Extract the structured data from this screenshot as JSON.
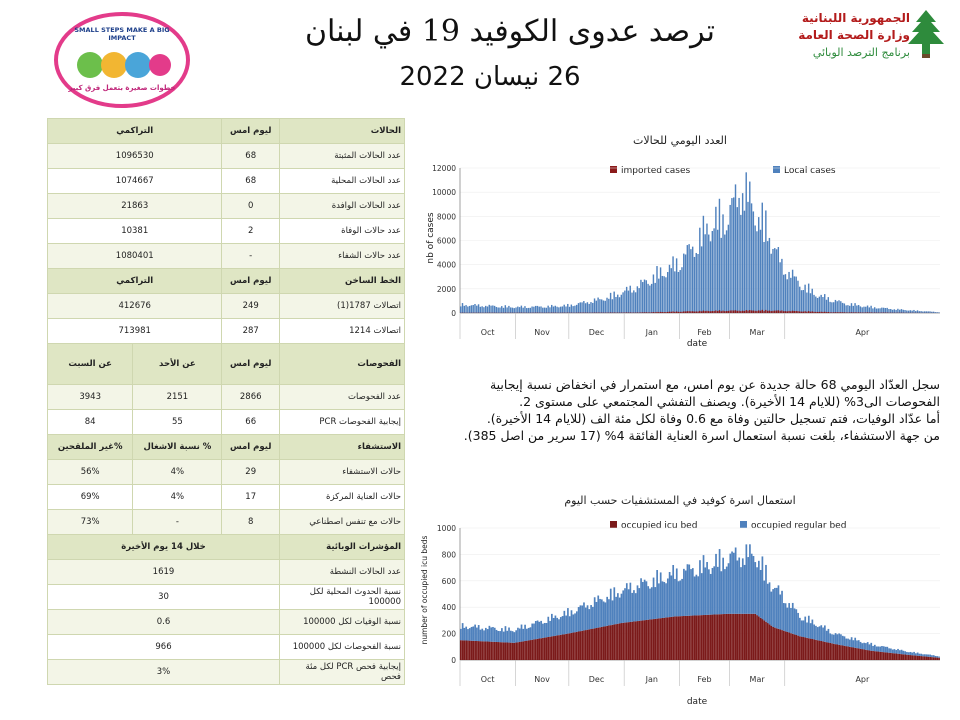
{
  "header": {
    "title": "ترصد عدوى الكوفيد 19 في لبنان",
    "date": "26 نيسان 2022",
    "ministry_line1": "الجمهورية اللبنانية",
    "ministry_line2": "وزارة الصحة العامة",
    "ministry_line3": "برنامج الترصد الوبائي",
    "logo_top": "SMALL STEPS MAKE A BIG IMPACT",
    "logo_bottom": "خطوات صغيرة بتعمل فرق كبير"
  },
  "table": {
    "cases": {
      "hdr": [
        "الحالات",
        "ليوم امس",
        "التراكمي"
      ],
      "rows": [
        [
          "عدد الحالات المثبتة",
          "68",
          "1096530"
        ],
        [
          "عدد الحالات المحلية",
          "68",
          "1074667"
        ],
        [
          "عدد الحالات الوافدة",
          "0",
          "21863"
        ],
        [
          "عدد حالات الوفاة",
          "2",
          "10381"
        ],
        [
          "عدد حالات الشفاء",
          "-",
          "1080401"
        ]
      ]
    },
    "hotline": {
      "hdr": [
        "الخط الساخن",
        "ليوم امس",
        "التراكمي"
      ],
      "rows": [
        [
          "اتصالات 1787(1)",
          "249",
          "412676"
        ],
        [
          "اتصالات 1214",
          "287",
          "713981"
        ]
      ]
    },
    "tests": {
      "hdr": [
        "الفحوصات",
        "ليوم امس",
        "عن الأحد",
        "عن السبت"
      ],
      "rows": [
        [
          "عدد الفحوصات",
          "2866",
          "2151",
          "3943"
        ],
        [
          "إيجابية الفحوصات PCR",
          "66",
          "55",
          "84"
        ]
      ]
    },
    "hospital": {
      "hdr": [
        "الاستشفاء",
        "ليوم امس",
        "% نسبة الاشغال",
        "%غير الملقحين"
      ],
      "rows": [
        [
          "حالات الاستشفاء",
          "29",
          "4%",
          "56%"
        ],
        [
          "حالات العناية المركزة",
          "17",
          "4%",
          "69%"
        ],
        [
          "حالات مع تنفس اصطناعي",
          "8",
          "-",
          "73%"
        ]
      ]
    },
    "indicators": {
      "hdr": [
        "المؤشرات الوبائية",
        "خلال 14 يوم الأخيرة"
      ],
      "rows": [
        [
          "عدد الحالات النشطة",
          "1619"
        ],
        [
          "نسبة الحدوث المحلية لكل 100000",
          "30"
        ],
        [
          "نسبة الوفيات لكل 100000",
          "0.6"
        ],
        [
          "نسبة الفحوصات لكل 100000",
          "966"
        ],
        [
          "إيجابية فحص PCR لكل مئة فحص",
          "3%"
        ]
      ]
    }
  },
  "paragraph": {
    "l1": "سجل العدّاد اليومي 68 حالة جديدة عن يوم امس، مع استمرار في انخفاض نسبة إيجابية",
    "l2": "الفحوصات الى3%  (للايام 14 الأخيرة). ويصنف التفشي المجتمعي على مستوى 2.",
    "l3": "أما عدّاد الوفيات، فتم تسجيل حالتين وفاة مع 0.6 وفاة  لكل مئة الف (للايام 14 الأخيرة).",
    "l4": "من جهة الاستشفاء، بلغت نسبة استعمال اسرة العناية الفائقة 4% (17 سرير من اصل 385)."
  },
  "chart_data": [
    {
      "type": "bar",
      "title": "العدد اليومي للحالات",
      "xlabel": "date",
      "ylabel": "nb of cases",
      "ylim": [
        0,
        12000
      ],
      "yticks": [
        0,
        2000,
        4000,
        6000,
        8000,
        10000,
        12000
      ],
      "months": [
        "Oct",
        "Nov",
        "Dec",
        "Jan",
        "Feb",
        "Mar",
        "Apr"
      ],
      "legend_position": "top",
      "colors": {
        "imported": "#8b1a1a",
        "local": "#4f81bd"
      },
      "series": [
        {
          "name": "imported cases",
          "key": "imported",
          "anchors": [
            [
              0,
              20
            ],
            [
              60,
              25
            ],
            [
              100,
              40
            ],
            [
              140,
              180
            ],
            [
              170,
              220
            ],
            [
              190,
              150
            ],
            [
              210,
              60
            ],
            [
              250,
              20
            ],
            [
              268,
              5
            ]
          ]
        },
        {
          "name": "Local cases",
          "key": "local",
          "anchors": [
            [
              0,
              700
            ],
            [
              15,
              600
            ],
            [
              30,
              500
            ],
            [
              50,
              550
            ],
            [
              60,
              620
            ],
            [
              70,
              900
            ],
            [
              80,
              1200
            ],
            [
              90,
              1700
            ],
            [
              100,
              2300
            ],
            [
              110,
              3200
            ],
            [
              120,
              4000
            ],
            [
              130,
              5500
            ],
            [
              140,
              7500
            ],
            [
              150,
              8200
            ],
            [
              158,
              10700
            ],
            [
              165,
              8500
            ],
            [
              172,
              7000
            ],
            [
              180,
              4000
            ],
            [
              190,
              2500
            ],
            [
              200,
              1500
            ],
            [
              215,
              800
            ],
            [
              230,
              500
            ],
            [
              245,
              300
            ],
            [
              260,
              150
            ],
            [
              268,
              68
            ]
          ]
        }
      ]
    },
    {
      "type": "bar",
      "title": "استعمال اسرة كوفيد في المستشفيات حسب اليوم",
      "xlabel": "date",
      "ylabel": "number of occupied icu beds",
      "ylim": [
        0,
        1000
      ],
      "yticks": [
        0,
        200,
        400,
        600,
        800,
        1000
      ],
      "months": [
        "Oct",
        "Nov",
        "Dec",
        "Jan",
        "Feb",
        "Mar",
        "Apr"
      ],
      "legend_position": "top",
      "colors": {
        "icu": "#7b1a1a",
        "regular": "#4f81bd"
      },
      "series": [
        {
          "name": "occupied icu bed",
          "key": "icu",
          "anchors": [
            [
              0,
              150
            ],
            [
              30,
              130
            ],
            [
              60,
              200
            ],
            [
              90,
              280
            ],
            [
              120,
              330
            ],
            [
              150,
              350
            ],
            [
              165,
              350
            ],
            [
              175,
              250
            ],
            [
              190,
              180
            ],
            [
              210,
              120
            ],
            [
              230,
              70
            ],
            [
              250,
              40
            ],
            [
              268,
              17
            ]
          ]
        },
        {
          "name": "occupied regular bed",
          "key": "regular",
          "anchors": [
            [
              0,
              110
            ],
            [
              30,
              100
            ],
            [
              60,
              160
            ],
            [
              90,
              250
            ],
            [
              120,
              330
            ],
            [
              140,
              390
            ],
            [
              155,
              450
            ],
            [
              165,
              460
            ],
            [
              172,
              350
            ],
            [
              190,
              160
            ],
            [
              210,
              80
            ],
            [
              230,
              50
            ],
            [
              250,
              25
            ],
            [
              268,
              12
            ]
          ]
        }
      ]
    }
  ]
}
